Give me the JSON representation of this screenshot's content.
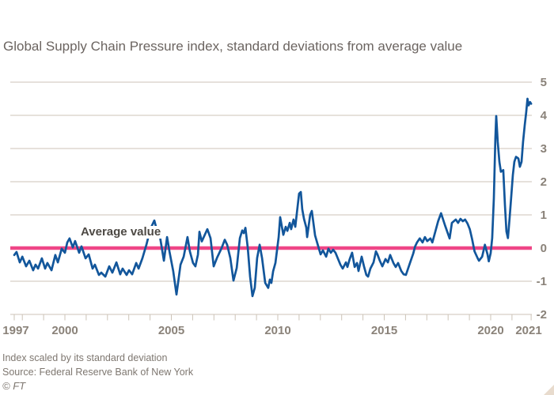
{
  "header": {
    "title": "Global Supply Chain Pressure index, standard deviations from average value"
  },
  "annotation": {
    "average_label": "Average value"
  },
  "footer": {
    "note": "Index scaled by its standard deviation",
    "source": "Source: Federal Reserve Bank of New York",
    "credit": "© FT"
  },
  "colors": {
    "background": "#ffffff",
    "line": "#12569b",
    "average_line": "#ef4687",
    "grid": "#ccc3b7",
    "axis_text": "#8a8279",
    "title_text": "#6b6460",
    "footer_text": "#7e7770",
    "annotation_text": "#4d4944",
    "corner_triangle": "#e8dbcd"
  },
  "chart_data": {
    "type": "line",
    "title": "Global Supply Chain Pressure index",
    "ylabel": "standard deviations from average value",
    "ylim": [
      -2,
      5
    ],
    "yticks": [
      5,
      4,
      3,
      2,
      1,
      0,
      -1,
      -2
    ],
    "x_range": [
      1997.62,
      2021.9
    ],
    "xtick_years_labeled": [
      1997,
      2000,
      2005,
      2010,
      2015,
      2020,
      2021
    ],
    "xtick_minor_every_year": true,
    "grid": true,
    "legend_position": "none",
    "average_line_value": 0,
    "series": [
      {
        "name": "Global Supply Chain Pressure index",
        "points": [
          [
            1997.62,
            -0.21
          ],
          [
            1997.73,
            -0.12
          ],
          [
            1997.88,
            -0.43
          ],
          [
            1998.0,
            -0.26
          ],
          [
            1998.18,
            -0.55
          ],
          [
            1998.33,
            -0.38
          ],
          [
            1998.51,
            -0.67
          ],
          [
            1998.62,
            -0.5
          ],
          [
            1998.74,
            -0.62
          ],
          [
            1998.92,
            -0.31
          ],
          [
            1999.07,
            -0.62
          ],
          [
            1999.18,
            -0.45
          ],
          [
            1999.37,
            -0.67
          ],
          [
            1999.55,
            -0.21
          ],
          [
            1999.67,
            -0.43
          ],
          [
            1999.85,
            -0.02
          ],
          [
            2000.0,
            -0.14
          ],
          [
            2000.11,
            0.17
          ],
          [
            2000.22,
            0.29
          ],
          [
            2000.37,
            0.02
          ],
          [
            2000.48,
            0.21
          ],
          [
            2000.67,
            -0.14
          ],
          [
            2000.78,
            0.05
          ],
          [
            2000.97,
            -0.31
          ],
          [
            2001.12,
            -0.19
          ],
          [
            2001.3,
            -0.62
          ],
          [
            2001.41,
            -0.5
          ],
          [
            2001.6,
            -0.81
          ],
          [
            2001.71,
            -0.74
          ],
          [
            2001.9,
            -0.86
          ],
          [
            2002.08,
            -0.55
          ],
          [
            2002.23,
            -0.74
          ],
          [
            2002.42,
            -0.43
          ],
          [
            2002.6,
            -0.79
          ],
          [
            2002.71,
            -0.62
          ],
          [
            2002.9,
            -0.81
          ],
          [
            2003.01,
            -0.67
          ],
          [
            2003.16,
            -0.79
          ],
          [
            2003.35,
            -0.45
          ],
          [
            2003.46,
            -0.62
          ],
          [
            2003.64,
            -0.31
          ],
          [
            2003.83,
            0.1
          ],
          [
            2004.01,
            0.57
          ],
          [
            2004.2,
            0.83
          ],
          [
            2004.31,
            0.57
          ],
          [
            2004.44,
            0.45
          ],
          [
            2004.65,
            -0.38
          ],
          [
            2004.8,
            0.33
          ],
          [
            2004.91,
            -0.1
          ],
          [
            2005.09,
            -0.7
          ],
          [
            2005.24,
            -1.4
          ],
          [
            2005.43,
            -0.5
          ],
          [
            2005.58,
            -0.26
          ],
          [
            2005.76,
            0.33
          ],
          [
            2005.87,
            -0.1
          ],
          [
            2006.02,
            -0.45
          ],
          [
            2006.13,
            -0.55
          ],
          [
            2006.25,
            -0.2
          ],
          [
            2006.32,
            0.49
          ],
          [
            2006.43,
            0.2
          ],
          [
            2006.69,
            0.57
          ],
          [
            2006.84,
            0.3
          ],
          [
            2006.99,
            -0.55
          ],
          [
            2007.14,
            -0.3
          ],
          [
            2007.36,
            0.0
          ],
          [
            2007.51,
            0.25
          ],
          [
            2007.62,
            0.1
          ],
          [
            2007.77,
            -0.3
          ],
          [
            2007.92,
            -0.98
          ],
          [
            2008.07,
            -0.6
          ],
          [
            2008.22,
            0.3
          ],
          [
            2008.33,
            0.53
          ],
          [
            2008.4,
            0.45
          ],
          [
            2008.48,
            0.61
          ],
          [
            2008.59,
            0.0
          ],
          [
            2008.7,
            -0.86
          ],
          [
            2008.81,
            -1.45
          ],
          [
            2008.92,
            -1.2
          ],
          [
            2009.03,
            -0.3
          ],
          [
            2009.15,
            0.1
          ],
          [
            2009.26,
            -0.3
          ],
          [
            2009.41,
            -1.05
          ],
          [
            2009.55,
            -1.2
          ],
          [
            2009.63,
            -0.95
          ],
          [
            2009.7,
            -1.05
          ],
          [
            2009.78,
            -0.7
          ],
          [
            2009.89,
            -0.45
          ],
          [
            2010.04,
            0.33
          ],
          [
            2010.11,
            0.93
          ],
          [
            2010.26,
            0.4
          ],
          [
            2010.37,
            0.64
          ],
          [
            2010.45,
            0.52
          ],
          [
            2010.56,
            0.76
          ],
          [
            2010.63,
            0.57
          ],
          [
            2010.74,
            0.86
          ],
          [
            2010.82,
            0.64
          ],
          [
            2011.0,
            1.64
          ],
          [
            2011.08,
            1.69
          ],
          [
            2011.15,
            1.17
          ],
          [
            2011.23,
            0.88
          ],
          [
            2011.34,
            0.62
          ],
          [
            2011.38,
            0.33
          ],
          [
            2011.52,
            1.0
          ],
          [
            2011.6,
            1.12
          ],
          [
            2011.75,
            0.38
          ],
          [
            2011.9,
            0.05
          ],
          [
            2012.01,
            -0.19
          ],
          [
            2012.12,
            -0.07
          ],
          [
            2012.27,
            -0.26
          ],
          [
            2012.38,
            -0.02
          ],
          [
            2012.49,
            -0.14
          ],
          [
            2012.6,
            -0.05
          ],
          [
            2012.71,
            -0.14
          ],
          [
            2012.94,
            -0.5
          ],
          [
            2013.05,
            -0.62
          ],
          [
            2013.2,
            -0.43
          ],
          [
            2013.27,
            -0.57
          ],
          [
            2013.38,
            -0.33
          ],
          [
            2013.49,
            -0.14
          ],
          [
            2013.61,
            -0.57
          ],
          [
            2013.72,
            -0.45
          ],
          [
            2013.79,
            -0.69
          ],
          [
            2013.94,
            -0.26
          ],
          [
            2014.05,
            -0.55
          ],
          [
            2014.16,
            -0.81
          ],
          [
            2014.24,
            -0.86
          ],
          [
            2014.35,
            -0.62
          ],
          [
            2014.5,
            -0.43
          ],
          [
            2014.61,
            -0.1
          ],
          [
            2014.68,
            -0.19
          ],
          [
            2014.79,
            -0.38
          ],
          [
            2014.91,
            -0.55
          ],
          [
            2015.06,
            -0.33
          ],
          [
            2015.17,
            -0.43
          ],
          [
            2015.28,
            -0.21
          ],
          [
            2015.43,
            -0.45
          ],
          [
            2015.54,
            -0.57
          ],
          [
            2015.65,
            -0.45
          ],
          [
            2015.8,
            -0.69
          ],
          [
            2015.91,
            -0.79
          ],
          [
            2016.02,
            -0.81
          ],
          [
            2016.21,
            -0.45
          ],
          [
            2016.36,
            -0.17
          ],
          [
            2016.45,
            0.05
          ],
          [
            2016.54,
            0.17
          ],
          [
            2016.67,
            0.29
          ],
          [
            2016.8,
            0.17
          ],
          [
            2016.91,
            0.33
          ],
          [
            2017.02,
            0.21
          ],
          [
            2017.17,
            0.29
          ],
          [
            2017.26,
            0.17
          ],
          [
            2017.41,
            0.52
          ],
          [
            2017.53,
            0.81
          ],
          [
            2017.67,
            1.05
          ],
          [
            2017.85,
            0.69
          ],
          [
            2018.07,
            0.29
          ],
          [
            2018.18,
            0.76
          ],
          [
            2018.36,
            0.86
          ],
          [
            2018.47,
            0.76
          ],
          [
            2018.58,
            0.88
          ],
          [
            2018.69,
            0.81
          ],
          [
            2018.8,
            0.86
          ],
          [
            2018.91,
            0.74
          ],
          [
            2019.02,
            0.57
          ],
          [
            2019.13,
            0.26
          ],
          [
            2019.24,
            -0.1
          ],
          [
            2019.39,
            -0.31
          ],
          [
            2019.45,
            -0.38
          ],
          [
            2019.6,
            -0.26
          ],
          [
            2019.73,
            0.1
          ],
          [
            2019.85,
            -0.19
          ],
          [
            2019.91,
            -0.4
          ],
          [
            2020.0,
            -0.15
          ],
          [
            2020.07,
            0.3
          ],
          [
            2020.15,
            1.5
          ],
          [
            2020.22,
            3.3
          ],
          [
            2020.26,
            3.98
          ],
          [
            2020.33,
            3.2
          ],
          [
            2020.41,
            2.6
          ],
          [
            2020.48,
            2.3
          ],
          [
            2020.59,
            2.35
          ],
          [
            2020.67,
            1.3
          ],
          [
            2020.74,
            0.5
          ],
          [
            2020.81,
            0.3
          ],
          [
            2020.89,
            0.9
          ],
          [
            2020.96,
            1.5
          ],
          [
            2021.04,
            2.2
          ],
          [
            2021.11,
            2.6
          ],
          [
            2021.19,
            2.75
          ],
          [
            2021.3,
            2.7
          ],
          [
            2021.37,
            2.45
          ],
          [
            2021.45,
            2.6
          ],
          [
            2021.52,
            3.2
          ],
          [
            2021.6,
            3.7
          ],
          [
            2021.67,
            4.1
          ],
          [
            2021.73,
            4.5
          ],
          [
            2021.78,
            4.3
          ],
          [
            2021.85,
            4.4
          ],
          [
            2021.9,
            4.35
          ]
        ]
      }
    ]
  }
}
